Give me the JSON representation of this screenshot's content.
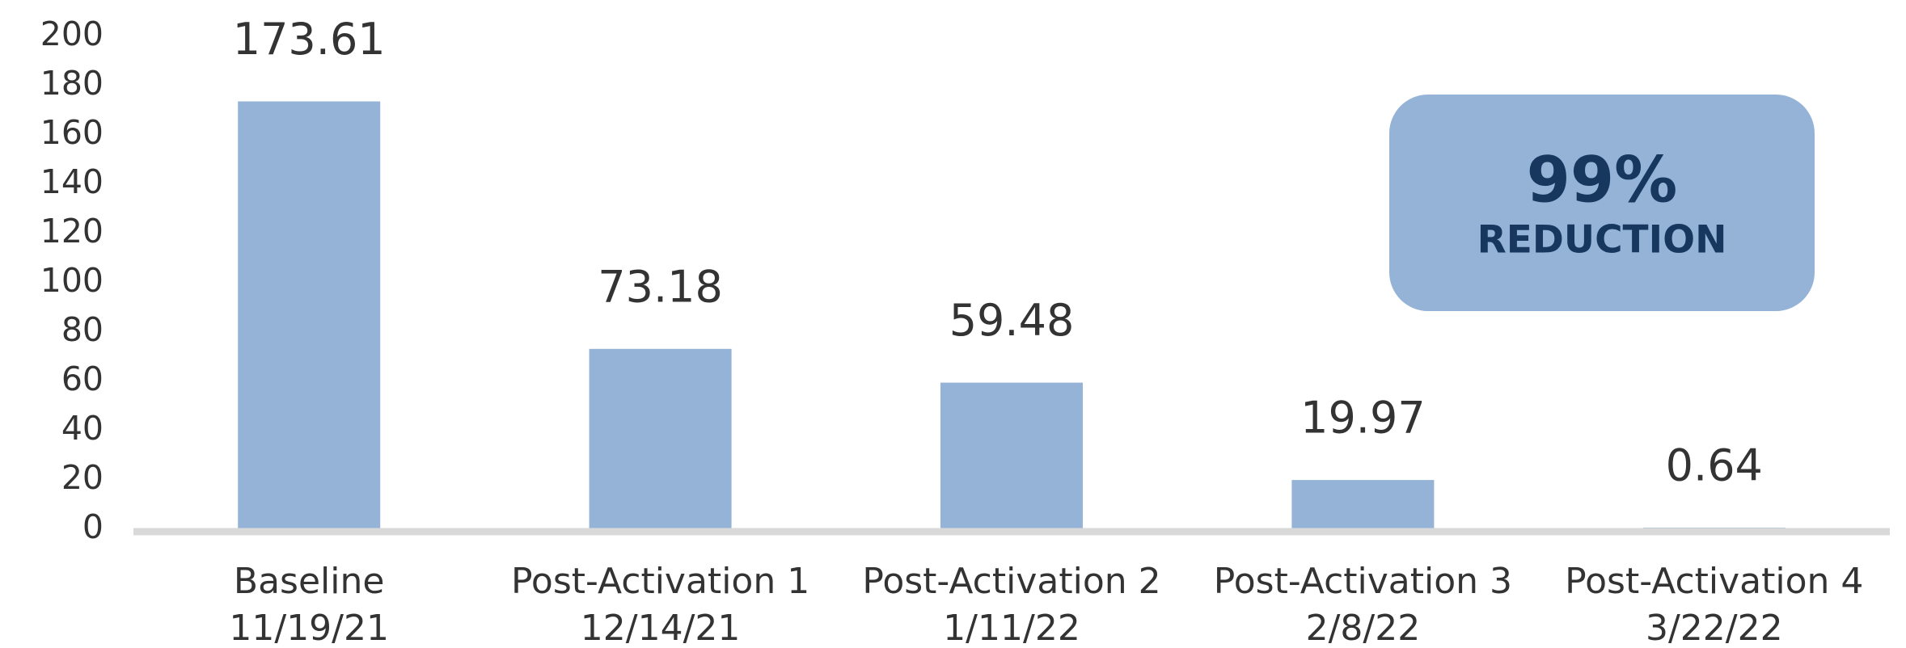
{
  "chart_data": {
    "type": "bar",
    "categories": [
      [
        "Baseline",
        "11/19/21"
      ],
      [
        "Post-Activation 1",
        "12/14/21"
      ],
      [
        "Post-Activation 2",
        "1/11/22"
      ],
      [
        "Post-Activation 3",
        "2/8/22"
      ],
      [
        "Post-Activation 4",
        "3/22/22"
      ]
    ],
    "values": [
      173.61,
      73.18,
      59.48,
      19.97,
      0.64
    ],
    "color": "#95b3d7",
    "ylim": [
      0,
      200
    ],
    "yticks": [
      0,
      20,
      40,
      60,
      80,
      100,
      120,
      140,
      160,
      180,
      200
    ],
    "grid": false,
    "annotation": {
      "headline": "99%",
      "text": "REDUCTION"
    }
  }
}
